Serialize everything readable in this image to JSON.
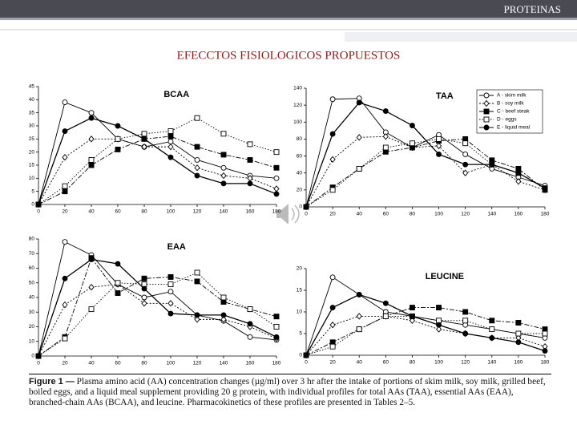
{
  "header": {
    "section": "PROTEINAS",
    "title": "EFECCTOS FISIOLOGICOS PROPUESTOS"
  },
  "caption": {
    "label": "Figure 1 —",
    "text": "Plasma amino acid (AA) concentration changes (µg/ml) over 3 hr after the intake of portions of skim milk, soy milk, grilled beef, boiled eggs, and a liquid meal supplement providing 20 g protein, with individual profiles for total AAs (TAA), essential AAs (EAA), branched-chain AAs (BCAA), and leucine. Pharmacokinetics of these profiles are presented in Tables 2–5."
  },
  "chart_data": [
    {
      "type": "line",
      "title": "BCAA",
      "x": [
        0,
        20,
        40,
        60,
        80,
        100,
        120,
        140,
        160,
        180
      ],
      "xlim": [
        0,
        180
      ],
      "xticks": [
        0,
        20,
        40,
        60,
        80,
        100,
        120,
        140,
        160,
        180
      ],
      "ylim": [
        0,
        45
      ],
      "yticks": [
        0,
        5,
        10,
        15,
        20,
        25,
        30,
        35,
        40,
        45
      ],
      "series": [
        {
          "marker": "circle-open",
          "dash": "solid",
          "color": "#000000",
          "values": [
            0,
            39,
            35,
            25,
            22,
            24,
            17,
            14,
            11,
            10
          ]
        },
        {
          "marker": "diamond-open",
          "dash": "dash",
          "color": "#000000",
          "values": [
            0,
            18,
            25,
            25,
            22,
            22,
            14,
            11,
            10,
            6
          ]
        },
        {
          "marker": "square-filled",
          "dash": "dashdot",
          "color": "#000000",
          "values": [
            0,
            5,
            15,
            21,
            25,
            26,
            22,
            19,
            17,
            14
          ]
        },
        {
          "marker": "square-open",
          "dash": "dot",
          "color": "#000000",
          "values": [
            0,
            7,
            17,
            25,
            27,
            28,
            33,
            27,
            23,
            20
          ]
        },
        {
          "marker": "circle-filled",
          "dash": "solid",
          "color": "#000000",
          "values": [
            0,
            28,
            33,
            30,
            25,
            18,
            11,
            8,
            8,
            4
          ]
        }
      ]
    },
    {
      "type": "line",
      "title": "TAA",
      "legend": "upper right",
      "x": [
        0,
        20,
        40,
        60,
        80,
        100,
        120,
        140,
        160,
        180
      ],
      "xlim": [
        0,
        180
      ],
      "xticks": [
        0,
        20,
        40,
        60,
        80,
        100,
        120,
        140,
        160,
        180
      ],
      "ylim": [
        0,
        140
      ],
      "yticks": [
        0,
        20,
        40,
        60,
        80,
        100,
        120,
        140
      ],
      "series": [
        {
          "name": "A - skim milk",
          "marker": "circle-open",
          "dash": "solid",
          "color": "#000000",
          "values": [
            0,
            127,
            128,
            88,
            70,
            85,
            62,
            45,
            35,
            25
          ]
        },
        {
          "name": "B - soy milk",
          "marker": "diamond-open",
          "dash": "dash",
          "color": "#000000",
          "values": [
            0,
            56,
            82,
            83,
            70,
            72,
            40,
            50,
            30,
            20
          ]
        },
        {
          "name": "C - beef steak",
          "marker": "square-filled",
          "dash": "dashdot",
          "color": "#000000",
          "values": [
            0,
            23,
            45,
            65,
            70,
            78,
            80,
            55,
            45,
            20
          ]
        },
        {
          "name": "D - eggs",
          "marker": "square-open",
          "dash": "dot",
          "color": "#000000",
          "values": [
            0,
            20,
            45,
            70,
            75,
            80,
            75,
            50,
            40,
            22
          ]
        },
        {
          "name": "E - liquid meal",
          "marker": "circle-filled",
          "dash": "solid",
          "color": "#000000",
          "values": [
            0,
            86,
            123,
            113,
            96,
            62,
            50,
            50,
            40,
            22
          ]
        }
      ]
    },
    {
      "type": "line",
      "title": "EAA",
      "x": [
        0,
        20,
        40,
        60,
        80,
        100,
        120,
        140,
        160,
        180
      ],
      "xlim": [
        0,
        180
      ],
      "xticks": [
        0,
        20,
        40,
        60,
        80,
        100,
        120,
        140,
        160,
        180
      ],
      "ylim": [
        0,
        80
      ],
      "yticks": [
        0,
        10,
        20,
        30,
        40,
        50,
        60,
        70,
        80
      ],
      "series": [
        {
          "marker": "circle-open",
          "dash": "solid",
          "color": "#000000",
          "values": [
            0,
            78,
            69,
            49,
            40,
            44,
            28,
            24,
            13,
            11
          ]
        },
        {
          "marker": "diamond-open",
          "dash": "dash",
          "color": "#000000",
          "values": [
            0,
            35,
            47,
            49,
            36,
            36,
            25,
            25,
            20,
            12
          ]
        },
        {
          "marker": "square-filled",
          "dash": "dashdot",
          "color": "#000000",
          "values": [
            0,
            13,
            67,
            43,
            53,
            54,
            51,
            37,
            32,
            27
          ]
        },
        {
          "marker": "square-open",
          "dash": "dot",
          "color": "#000000",
          "values": [
            0,
            12,
            32,
            50,
            49,
            49,
            57,
            40,
            32,
            20
          ]
        },
        {
          "marker": "circle-filled",
          "dash": "solid",
          "color": "#000000",
          "values": [
            0,
            53,
            66,
            63,
            46,
            29,
            28,
            28,
            22,
            13
          ]
        }
      ]
    },
    {
      "type": "line",
      "title": "LEUCINE",
      "x": [
        0,
        20,
        40,
        60,
        80,
        100,
        120,
        140,
        160,
        180
      ],
      "xlim": [
        0,
        180
      ],
      "xticks": [
        0,
        20,
        40,
        60,
        80,
        100,
        120,
        140,
        160,
        180
      ],
      "ylim": [
        0,
        20
      ],
      "yticks": [
        0,
        5,
        10,
        15,
        20
      ],
      "series": [
        {
          "marker": "circle-open",
          "dash": "solid",
          "color": "#000000",
          "values": [
            0,
            18,
            14,
            10,
            9,
            8,
            7,
            6,
            5,
            4
          ]
        },
        {
          "marker": "diamond-open",
          "dash": "dash",
          "color": "#000000",
          "values": [
            0,
            7,
            9,
            9,
            8,
            6,
            5,
            4,
            4,
            2
          ]
        },
        {
          "marker": "square-filled",
          "dash": "dashdot",
          "color": "#000000",
          "values": [
            0,
            3,
            6,
            9,
            11,
            11,
            10,
            8,
            7.5,
            6
          ]
        },
        {
          "marker": "square-open",
          "dash": "dot",
          "color": "#000000",
          "values": [
            0,
            2,
            6,
            9,
            9,
            8,
            8,
            6,
            5,
            5
          ]
        },
        {
          "marker": "circle-filled",
          "dash": "solid",
          "color": "#000000",
          "values": [
            0,
            11,
            14,
            12,
            9,
            7,
            5,
            4,
            3,
            1
          ]
        }
      ]
    }
  ]
}
